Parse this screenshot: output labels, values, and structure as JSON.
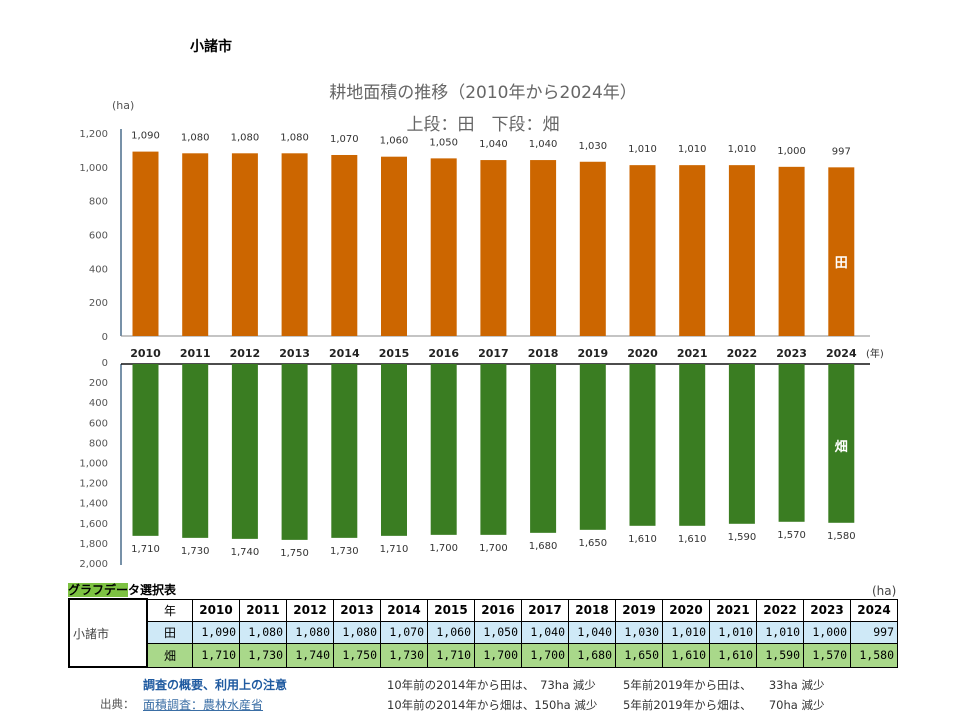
{
  "city": "小諸市",
  "chart_data": [
    {
      "type": "bar",
      "title": "耕地面積の推移（2010年から2024年）",
      "subtitle": "上段：田　下段：畑",
      "ylabel": "(ha)",
      "xlabel": "(年)",
      "series_label": "田",
      "color": "#CC6600",
      "ylim": [
        0,
        1200
      ],
      "yticks": [
        "0",
        "200",
        "400",
        "600",
        "800",
        "1,000",
        "1,200"
      ],
      "categories": [
        "2010",
        "2011",
        "2012",
        "2013",
        "2014",
        "2015",
        "2016",
        "2017",
        "2018",
        "2019",
        "2020",
        "2021",
        "2022",
        "2023",
        "2024"
      ],
      "values": [
        1090,
        1080,
        1080,
        1080,
        1070,
        1060,
        1050,
        1040,
        1040,
        1030,
        1010,
        1010,
        1010,
        1000,
        997
      ],
      "data_labels": [
        "1,090",
        "1,080",
        "1,080",
        "1,080",
        "1,070",
        "1,060",
        "1,050",
        "1,040",
        "1,040",
        "1,030",
        "1,010",
        "1,010",
        "1,010",
        "1,000",
        "997"
      ]
    },
    {
      "type": "bar",
      "orientation": "inverted",
      "series_label": "畑",
      "color": "#3A7D22",
      "ylim": [
        0,
        2000
      ],
      "yticks": [
        "0",
        "200",
        "400",
        "600",
        "800",
        "1,000",
        "1,200",
        "1,400",
        "1,600",
        "1,800",
        "2,000"
      ],
      "categories": [
        "2010",
        "2011",
        "2012",
        "2013",
        "2014",
        "2015",
        "2016",
        "2017",
        "2018",
        "2019",
        "2020",
        "2021",
        "2022",
        "2023",
        "2024"
      ],
      "values": [
        1710,
        1730,
        1740,
        1750,
        1730,
        1710,
        1700,
        1700,
        1680,
        1650,
        1610,
        1610,
        1590,
        1570,
        1580
      ],
      "data_labels": [
        "1,710",
        "1,730",
        "1,740",
        "1,750",
        "1,730",
        "1,710",
        "1,700",
        "1,700",
        "1,680",
        "1,650",
        "1,610",
        "1,610",
        "1,590",
        "1,570",
        "1,580"
      ]
    }
  ],
  "table": {
    "caption_highlight": "グラフデー",
    "caption_rest": "タ選択表",
    "unit": "(ha)",
    "city": "小諸市",
    "year_header": "年",
    "years": [
      "2010",
      "2011",
      "2012",
      "2013",
      "2014",
      "2015",
      "2016",
      "2017",
      "2018",
      "2019",
      "2020",
      "2021",
      "2022",
      "2023",
      "2024"
    ],
    "rice_label": "田",
    "rice": [
      "1,090",
      "1,080",
      "1,080",
      "1,080",
      "1,070",
      "1,060",
      "1,050",
      "1,040",
      "1,040",
      "1,030",
      "1,010",
      "1,010",
      "1,010",
      "1,000",
      "997"
    ],
    "field_label": "畑",
    "field": [
      "1,710",
      "1,730",
      "1,740",
      "1,750",
      "1,730",
      "1,710",
      "1,700",
      "1,700",
      "1,680",
      "1,650",
      "1,610",
      "1,610",
      "1,590",
      "1,570",
      "1,580"
    ]
  },
  "footer": {
    "overview_link": "調査の概要、利用上の注意",
    "source_label": "出典：",
    "source_link": "面積調査：農林水産省",
    "notes": [
      "10年前の2014年から田は、　73ha 減少",
      "5年前2019年から田は、　　33ha 減少",
      "10年前の2014年から畑は、150ha 減少",
      "5年前2019年から畑は、　　70ha 減少"
    ]
  }
}
